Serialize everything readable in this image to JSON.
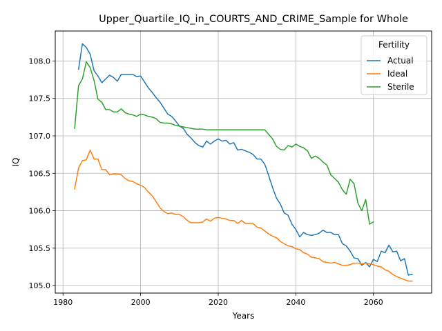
{
  "chart_data": {
    "type": "line",
    "title": "Upper_Quartile_IQ_in_COURTS_AND_CRIME_Sample for Whole",
    "xlabel": "Years",
    "ylabel": "IQ",
    "xlim": [
      1978,
      2075
    ],
    "ylim": [
      104.9,
      108.4
    ],
    "xticks": [
      1980,
      2000,
      2020,
      2040,
      2060
    ],
    "yticks": [
      105.0,
      105.5,
      106.0,
      106.5,
      107.0,
      107.5,
      108.0
    ],
    "xtick_labels": [
      "1980",
      "2000",
      "2020",
      "2040",
      "2060"
    ],
    "ytick_labels": [
      "105.0",
      "105.5",
      "106.0",
      "106.5",
      "107.0",
      "107.5",
      "108.0"
    ],
    "grid": true,
    "legend": {
      "title": "Fertility",
      "placement": "top-right",
      "entries": [
        "Actual",
        "Ideal",
        "Sterile"
      ]
    },
    "colors": {
      "Actual": "#1f77b4",
      "Ideal": "#ff7f0e",
      "Sterile": "#2ca02c"
    },
    "series": [
      {
        "name": "Actual",
        "x": [
          1984,
          1985,
          1986,
          1987,
          1988,
          1989,
          1990,
          1991,
          1992,
          1993,
          1994,
          1995,
          1996,
          1997,
          1998,
          1999,
          2000,
          2001,
          2002,
          2003,
          2004,
          2005,
          2006,
          2007,
          2008,
          2009,
          2010,
          2011,
          2012,
          2013,
          2014,
          2015,
          2016,
          2017,
          2018,
          2019,
          2020,
          2021,
          2022,
          2023,
          2024,
          2025,
          2026,
          2027,
          2028,
          2029,
          2030,
          2031,
          2032,
          2033,
          2034,
          2035,
          2036,
          2037,
          2038,
          2039,
          2040,
          2041,
          2042,
          2043,
          2044,
          2045,
          2046,
          2047,
          2048,
          2049,
          2050,
          2051,
          2052,
          2053,
          2054,
          2055,
          2056,
          2057,
          2058,
          2059,
          2060,
          2061,
          2062,
          2063,
          2064,
          2065,
          2066,
          2067,
          2068,
          2069,
          2070
        ],
        "values": [
          107.89,
          108.23,
          108.18,
          108.09,
          107.87,
          107.8,
          107.71,
          107.76,
          107.81,
          107.78,
          107.73,
          107.82,
          107.82,
          107.82,
          107.82,
          107.79,
          107.8,
          107.72,
          107.64,
          107.58,
          107.51,
          107.45,
          107.37,
          107.29,
          107.26,
          107.2,
          107.13,
          107.1,
          107.02,
          106.97,
          106.91,
          106.87,
          106.85,
          106.93,
          106.89,
          106.93,
          106.96,
          106.93,
          106.94,
          106.89,
          106.91,
          106.81,
          106.82,
          106.8,
          106.78,
          106.75,
          106.69,
          106.69,
          106.62,
          106.47,
          106.31,
          106.17,
          106.09,
          105.97,
          105.94,
          105.82,
          105.75,
          105.65,
          105.71,
          105.68,
          105.67,
          105.68,
          105.7,
          105.74,
          105.71,
          105.71,
          105.68,
          105.68,
          105.56,
          105.53,
          105.46,
          105.37,
          105.36,
          105.27,
          105.31,
          105.25,
          105.35,
          105.32,
          105.46,
          105.44,
          105.54,
          105.45,
          105.46,
          105.33,
          105.36,
          105.14,
          105.15
        ]
      },
      {
        "name": "Ideal",
        "x": [
          1983,
          1984,
          1985,
          1986,
          1987,
          1988,
          1989,
          1990,
          1991,
          1992,
          1993,
          1994,
          1995,
          1996,
          1997,
          1998,
          1999,
          2000,
          2001,
          2002,
          2003,
          2004,
          2005,
          2006,
          2007,
          2008,
          2009,
          2010,
          2011,
          2012,
          2013,
          2014,
          2015,
          2016,
          2017,
          2018,
          2019,
          2020,
          2021,
          2022,
          2023,
          2024,
          2025,
          2026,
          2027,
          2028,
          2029,
          2030,
          2031,
          2032,
          2033,
          2034,
          2035,
          2036,
          2037,
          2038,
          2039,
          2040,
          2041,
          2042,
          2043,
          2044,
          2045,
          2046,
          2047,
          2048,
          2049,
          2050,
          2051,
          2052,
          2053,
          2054,
          2055,
          2056,
          2057,
          2058,
          2059,
          2060,
          2061,
          2062,
          2063,
          2064,
          2065,
          2066,
          2067,
          2068,
          2069,
          2070
        ],
        "values": [
          106.29,
          106.57,
          106.67,
          106.68,
          106.81,
          106.69,
          106.69,
          106.55,
          106.55,
          106.48,
          106.49,
          106.49,
          106.48,
          106.43,
          106.4,
          106.39,
          106.36,
          106.34,
          106.31,
          106.25,
          106.2,
          106.12,
          106.04,
          105.99,
          105.96,
          105.97,
          105.95,
          105.95,
          105.92,
          105.87,
          105.84,
          105.84,
          105.84,
          105.85,
          105.89,
          105.86,
          105.9,
          105.91,
          105.9,
          105.89,
          105.87,
          105.87,
          105.83,
          105.87,
          105.83,
          105.83,
          105.83,
          105.78,
          105.77,
          105.73,
          105.69,
          105.66,
          105.64,
          105.59,
          105.56,
          105.53,
          105.52,
          105.49,
          105.48,
          105.44,
          105.42,
          105.38,
          105.37,
          105.36,
          105.32,
          105.31,
          105.3,
          105.31,
          105.29,
          105.27,
          105.27,
          105.28,
          105.3,
          105.3,
          105.29,
          105.3,
          105.29,
          105.28,
          105.26,
          105.25,
          105.21,
          105.19,
          105.15,
          105.12,
          105.1,
          105.08,
          105.06,
          105.06
        ]
      },
      {
        "name": "Sterile",
        "x": [
          1983,
          1984,
          1985,
          1986,
          1987,
          1988,
          1989,
          1990,
          1991,
          1992,
          1993,
          1994,
          1995,
          1996,
          1997,
          1998,
          1999,
          2000,
          2001,
          2002,
          2003,
          2004,
          2005,
          2006,
          2007,
          2008,
          2009,
          2010,
          2011,
          2012,
          2013,
          2014,
          2015,
          2016,
          2017,
          2018,
          2019,
          2020,
          2021,
          2022,
          2023,
          2024,
          2025,
          2026,
          2027,
          2028,
          2029,
          2030,
          2031,
          2032,
          2033,
          2034,
          2035,
          2036,
          2037,
          2038,
          2039,
          2040,
          2041,
          2042,
          2043,
          2044,
          2045,
          2046,
          2047,
          2048,
          2049,
          2050,
          2051,
          2052,
          2053,
          2054,
          2055,
          2056,
          2057,
          2058,
          2059,
          2060
        ],
        "values": [
          107.1,
          107.67,
          107.76,
          107.99,
          107.91,
          107.74,
          107.49,
          107.45,
          107.35,
          107.35,
          107.32,
          107.32,
          107.36,
          107.31,
          107.29,
          107.28,
          107.26,
          107.29,
          107.28,
          107.26,
          107.25,
          107.23,
          107.18,
          107.17,
          107.17,
          107.16,
          107.14,
          107.13,
          107.12,
          107.11,
          107.1,
          107.09,
          107.09,
          107.09,
          107.08,
          107.08,
          107.08,
          107.08,
          107.08,
          107.08,
          107.08,
          107.08,
          107.08,
          107.08,
          107.08,
          107.08,
          107.08,
          107.08,
          107.08,
          107.08,
          107.02,
          106.96,
          106.86,
          106.82,
          106.81,
          106.87,
          106.85,
          106.89,
          106.86,
          106.84,
          106.8,
          106.7,
          106.73,
          106.7,
          106.65,
          106.61,
          106.48,
          106.43,
          106.38,
          106.28,
          106.22,
          106.42,
          106.36,
          106.1,
          106.0,
          106.15,
          105.82,
          105.85
        ]
      }
    ]
  }
}
